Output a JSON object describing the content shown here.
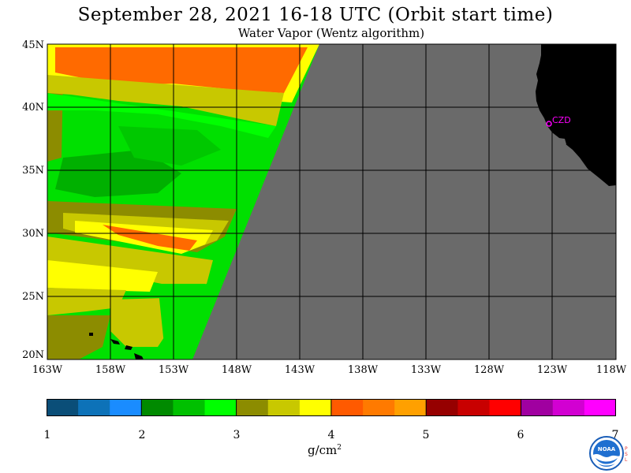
{
  "header": {
    "title": "September 28, 2021  16-18 UTC  (Orbit start time)",
    "subtitle": "Water Vapor (Wentz algorithm)"
  },
  "map": {
    "lat_labels": [
      "45N",
      "40N",
      "35N",
      "30N",
      "25N",
      "20N"
    ],
    "lon_labels": [
      "163W",
      "158W",
      "153W",
      "148W",
      "143W",
      "138W",
      "133W",
      "128W",
      "123W",
      "118W"
    ],
    "station_label": "CZD",
    "colors": {
      "no_data": "#6a6a6a",
      "land": "#000000",
      "station": "#ff00ff",
      "grid": "#000000"
    }
  },
  "colorbar": {
    "tick_labels": [
      "1",
      "2",
      "3",
      "4",
      "5",
      "6",
      "7"
    ],
    "units_text": "g/cm",
    "units_superscript": "2",
    "colors": [
      "#0a4e78",
      "#0d72b8",
      "#1a8cff",
      "#008a00",
      "#00c000",
      "#00ff00",
      "#8c8c00",
      "#c8c800",
      "#ffff00",
      "#ff5a00",
      "#ff7a00",
      "#ffa000",
      "#960000",
      "#c80000",
      "#ff0000",
      "#a000a0",
      "#d200d2",
      "#ff00ff"
    ]
  },
  "footer": {
    "logo_text": "NOAA",
    "psl_letters": [
      "P",
      "S",
      "L"
    ]
  }
}
